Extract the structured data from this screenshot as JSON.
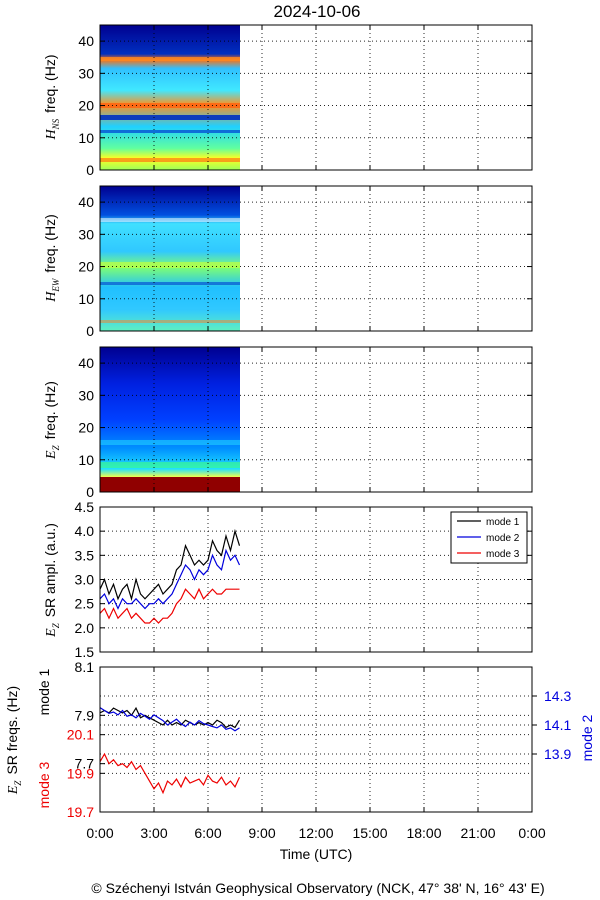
{
  "title": "2024-10-06",
  "footer": "© Széchenyi István Geophysical Observatory (NCK, 47° 38' N, 16° 43' E)",
  "colors": {
    "mode1": "#000000",
    "mode2": "#0000dd",
    "mode3": "#ee0000"
  },
  "x_axis": {
    "label": "Time (UTC)",
    "ticks": [
      "0:00",
      "3:00",
      "6:00",
      "9:00",
      "12:00",
      "15:00",
      "18:00",
      "21:00",
      "0:00"
    ],
    "range_hours": [
      0,
      24
    ]
  },
  "spectrograms": [
    {
      "ylabel_var": "H",
      "ylabel_sub": "NS",
      "ylabel_rest": "freq. (Hz)",
      "yticks": [
        "0",
        "10",
        "20",
        "30",
        "40"
      ],
      "ylim": [
        0,
        45
      ],
      "data_end_hours": 7.75
    },
    {
      "ylabel_var": "H",
      "ylabel_sub": "EW",
      "ylabel_rest": "freq. (Hz)",
      "yticks": [
        "0",
        "10",
        "20",
        "30",
        "40"
      ],
      "ylim": [
        0,
        45
      ],
      "data_end_hours": 7.75
    },
    {
      "ylabel_var": "E",
      "ylabel_sub": "Z",
      "ylabel_rest": "freq. (Hz)",
      "yticks": [
        "0",
        "10",
        "20",
        "30",
        "40"
      ],
      "ylim": [
        0,
        45
      ],
      "data_end_hours": 7.75
    }
  ],
  "amp_panel": {
    "ylabel_var": "E",
    "ylabel_sub": "Z",
    "ylabel_rest": "SR ampl. (a.u.)",
    "yticks": [
      "1.5",
      "2.0",
      "2.5",
      "3.0",
      "3.5",
      "4.0",
      "4.5"
    ],
    "legend": [
      "mode 1",
      "mode 2",
      "mode 3"
    ]
  },
  "freq_panel": {
    "ylabel_var": "E",
    "ylabel_sub": "Z",
    "ylabel_rest": "SR freqs. (Hz)",
    "mode1_label": "mode 1",
    "mode2_label": "mode 2",
    "mode3_label": "mode 3",
    "mode1_ticks": [
      "8.1",
      "7.9",
      "7.7"
    ],
    "mode2_ticks": [
      "14.3",
      "14.1",
      "13.9"
    ],
    "mode3_ticks": [
      "20.1",
      "19.9",
      "19.7"
    ]
  },
  "chart_data": [
    {
      "type": "line",
      "title": "",
      "xlabel": "Time (UTC)",
      "ylabel": "E_Z SR ampl. (a.u.)",
      "xlim": [
        0,
        24
      ],
      "ylim": [
        1.5,
        4.5
      ],
      "x": [
        0.0,
        0.25,
        0.5,
        0.75,
        1.0,
        1.25,
        1.5,
        1.75,
        2.0,
        2.25,
        2.5,
        2.75,
        3.0,
        3.25,
        3.5,
        3.75,
        4.0,
        4.25,
        4.5,
        4.75,
        5.0,
        5.25,
        5.5,
        5.75,
        6.0,
        6.25,
        6.5,
        6.75,
        7.0,
        7.25,
        7.5,
        7.75
      ],
      "series": [
        {
          "name": "mode 1",
          "color": "#000000",
          "values": [
            2.8,
            3.0,
            2.7,
            2.9,
            2.6,
            2.8,
            2.9,
            2.6,
            3.0,
            2.7,
            2.6,
            2.7,
            2.8,
            2.9,
            2.7,
            2.8,
            2.9,
            3.2,
            3.3,
            3.7,
            3.5,
            3.3,
            3.4,
            3.3,
            3.4,
            3.8,
            3.6,
            3.5,
            3.9,
            3.6,
            4.0,
            3.7
          ]
        },
        {
          "name": "mode 2",
          "color": "#0000dd",
          "values": [
            2.6,
            2.7,
            2.5,
            2.6,
            2.4,
            2.6,
            2.5,
            2.5,
            2.6,
            2.5,
            2.4,
            2.5,
            2.5,
            2.6,
            2.5,
            2.6,
            2.7,
            2.9,
            3.1,
            3.3,
            3.2,
            3.0,
            3.2,
            3.1,
            3.2,
            3.5,
            3.3,
            3.2,
            3.6,
            3.4,
            3.5,
            3.3
          ]
        },
        {
          "name": "mode 3",
          "color": "#ee0000",
          "values": [
            2.3,
            2.4,
            2.2,
            2.4,
            2.2,
            2.3,
            2.4,
            2.2,
            2.3,
            2.2,
            2.1,
            2.1,
            2.2,
            2.1,
            2.2,
            2.2,
            2.3,
            2.5,
            2.6,
            2.8,
            2.7,
            2.6,
            2.8,
            2.6,
            2.7,
            2.8,
            2.7,
            2.7,
            2.8,
            2.8,
            2.8,
            2.8
          ]
        }
      ]
    },
    {
      "type": "line",
      "title": "",
      "xlabel": "Time (UTC)",
      "ylabel": "E_Z SR freqs. (Hz)",
      "xlim": [
        0,
        24
      ],
      "x": [
        0.0,
        0.25,
        0.5,
        0.75,
        1.0,
        1.25,
        1.5,
        1.75,
        2.0,
        2.25,
        2.5,
        2.75,
        3.0,
        3.25,
        3.5,
        3.75,
        4.0,
        4.25,
        4.5,
        4.75,
        5.0,
        5.25,
        5.5,
        5.75,
        6.0,
        6.25,
        6.5,
        6.75,
        7.0,
        7.25,
        7.5,
        7.75
      ],
      "series": [
        {
          "name": "mode 1",
          "color": "#000000",
          "ylim": [
            7.5,
            8.1
          ],
          "values": [
            7.91,
            7.92,
            7.91,
            7.93,
            7.92,
            7.91,
            7.92,
            7.9,
            7.93,
            7.89,
            7.9,
            7.89,
            7.88,
            7.87,
            7.86,
            7.88,
            7.86,
            7.87,
            7.86,
            7.88,
            7.87,
            7.86,
            7.87,
            7.86,
            7.87,
            7.86,
            7.88,
            7.87,
            7.85,
            7.86,
            7.85,
            7.88
          ]
        },
        {
          "name": "mode 2",
          "color": "#0000dd",
          "ylim": [
            13.5,
            14.5
          ],
          "values": [
            14.22,
            14.2,
            14.18,
            14.19,
            14.17,
            14.2,
            14.16,
            14.17,
            14.15,
            14.18,
            14.16,
            14.14,
            14.17,
            14.15,
            14.13,
            14.1,
            14.12,
            14.14,
            14.11,
            14.09,
            14.12,
            14.1,
            14.13,
            14.11,
            14.1,
            14.09,
            14.08,
            14.1,
            14.07,
            14.08,
            14.06,
            14.08
          ]
        },
        {
          "name": "mode 3",
          "color": "#ee0000",
          "ylim": [
            19.7,
            20.45
          ],
          "values": [
            19.96,
            20.0,
            19.95,
            19.97,
            19.94,
            19.95,
            19.93,
            19.96,
            19.92,
            19.94,
            19.9,
            19.86,
            19.82,
            19.85,
            19.8,
            19.86,
            19.84,
            19.87,
            19.83,
            19.88,
            19.85,
            19.86,
            19.87,
            19.84,
            19.89,
            19.86,
            19.85,
            19.88,
            19.84,
            19.86,
            19.83,
            19.88
          ]
        }
      ]
    }
  ]
}
